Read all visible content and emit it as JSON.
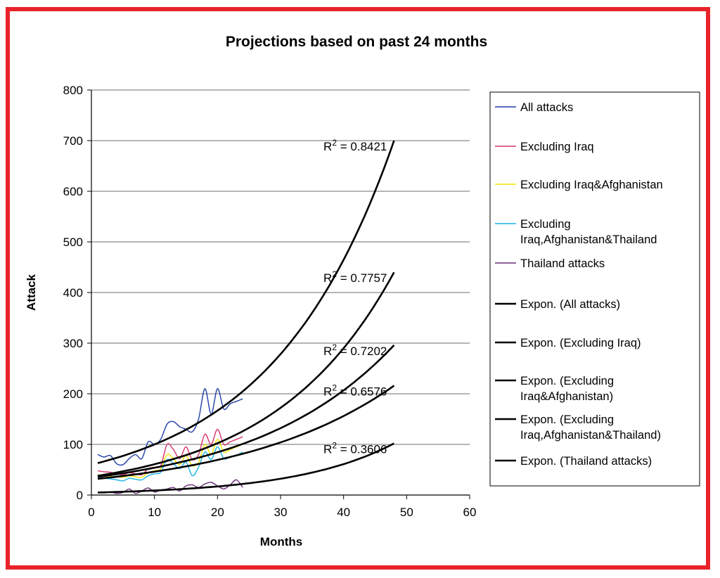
{
  "chart_data": {
    "type": "line",
    "title": "Projections based on past 24 months",
    "xlabel": "Months",
    "ylabel": "Attack",
    "xlim": [
      0,
      60
    ],
    "ylim": [
      0,
      800
    ],
    "xticks": [
      0,
      10,
      20,
      30,
      40,
      50,
      60
    ],
    "yticks": [
      0,
      100,
      200,
      300,
      400,
      500,
      600,
      700,
      800
    ],
    "grid": "horizontal",
    "legend_position": "right",
    "series": [
      {
        "name": "All attacks",
        "color": "#1f3fa8",
        "kind": "data",
        "x": [
          1,
          2,
          3,
          4,
          5,
          6,
          7,
          8,
          9,
          10,
          11,
          12,
          13,
          14,
          15,
          16,
          17,
          18,
          19,
          20,
          21,
          22,
          23,
          24
        ],
        "y": [
          80,
          75,
          78,
          62,
          60,
          72,
          80,
          72,
          105,
          100,
          110,
          140,
          145,
          135,
          130,
          125,
          150,
          210,
          160,
          210,
          170,
          180,
          185,
          190
        ]
      },
      {
        "name": "Excluding Iraq",
        "color": "#d6336c",
        "kind": "data",
        "x": [
          1,
          2,
          3,
          4,
          5,
          6,
          7,
          8,
          9,
          10,
          11,
          12,
          13,
          14,
          15,
          16,
          17,
          18,
          19,
          20,
          21,
          22,
          23,
          24
        ],
        "y": [
          48,
          46,
          45,
          42,
          40,
          44,
          42,
          40,
          52,
          55,
          58,
          100,
          90,
          72,
          95,
          70,
          80,
          120,
          100,
          130,
          100,
          105,
          110,
          115
        ]
      },
      {
        "name": "Excluding Iraq&Afghanistan",
        "color": "#f2e200",
        "kind": "data",
        "x": [
          1,
          2,
          3,
          4,
          5,
          6,
          7,
          8,
          9,
          10,
          11,
          12,
          13,
          14,
          15,
          16,
          17,
          18,
          19,
          20,
          21,
          22,
          23,
          24
        ],
        "y": [
          40,
          38,
          37,
          36,
          35,
          38,
          36,
          35,
          44,
          48,
          52,
          80,
          72,
          60,
          78,
          58,
          65,
          100,
          80,
          110,
          85,
          90,
          95,
          100
        ]
      },
      {
        "name": "Excluding Iraq,Afghanistan&Thailand",
        "color": "#19b4e6",
        "kind": "data",
        "x": [
          1,
          2,
          3,
          4,
          5,
          6,
          7,
          8,
          9,
          10,
          11,
          12,
          13,
          14,
          15,
          16,
          17,
          18,
          19,
          20,
          21,
          22,
          23,
          24
        ],
        "y": [
          35,
          33,
          32,
          30,
          28,
          33,
          31,
          30,
          38,
          42,
          45,
          70,
          62,
          52,
          65,
          38,
          55,
          85,
          70,
          95,
          72,
          75,
          78,
          85
        ]
      },
      {
        "name": "Thailand attacks",
        "color": "#6b2f7a",
        "kind": "data",
        "x": [
          1,
          2,
          3,
          4,
          5,
          6,
          7,
          8,
          9,
          10,
          11,
          12,
          13,
          14,
          15,
          16,
          17,
          18,
          19,
          20,
          21,
          22,
          23,
          24
        ],
        "y": [
          5,
          4,
          6,
          3,
          5,
          12,
          3,
          8,
          14,
          6,
          10,
          12,
          15,
          8,
          18,
          20,
          15,
          22,
          25,
          18,
          12,
          20,
          30,
          15
        ]
      },
      {
        "name": "Expon. (All attacks)",
        "color": "#000000",
        "kind": "trend",
        "r2": "R² = 0.8421",
        "x": [
          1,
          10,
          20,
          30,
          40,
          48
        ],
        "y": [
          63,
          104,
          178,
          305,
          520,
          700
        ]
      },
      {
        "name": "Expon. (Excluding Iraq)",
        "color": "#000000",
        "kind": "trend",
        "r2": "R² = 0.7757",
        "x": [
          1,
          10,
          20,
          30,
          40,
          48
        ],
        "y": [
          38,
          62,
          108,
          188,
          326,
          440
        ]
      },
      {
        "name": "Expon. (Excluding Iraq&Afghanistan)",
        "color": "#000000",
        "kind": "trend",
        "r2": "R² = 0.7202",
        "x": [
          1,
          10,
          20,
          30,
          40,
          48
        ],
        "y": [
          36,
          56,
          90,
          143,
          227,
          296
        ]
      },
      {
        "name": "Expon. (Excluding Iraq,Afghanistan&Thailand)",
        "color": "#000000",
        "kind": "trend",
        "r2": "R² = 0.6576",
        "x": [
          1,
          10,
          20,
          30,
          40,
          48
        ],
        "y": [
          32,
          46,
          70,
          108,
          165,
          216
        ]
      },
      {
        "name": "Expon. (Thailand attacks)",
        "color": "#000000",
        "kind": "trend",
        "r2": "R² = 0.3606",
        "x": [
          1,
          10,
          20,
          30,
          40,
          48
        ],
        "y": [
          5,
          10,
          19,
          35,
          66,
          102
        ]
      }
    ],
    "legend": [
      {
        "lines": [
          "All attacks"
        ],
        "color": "#1f3fa8"
      },
      {
        "lines": [
          "Excluding Iraq"
        ],
        "color": "#d6336c"
      },
      {
        "lines": [
          "Excluding Iraq&Afghanistan"
        ],
        "color": "#f2e200"
      },
      {
        "lines": [
          "Excluding",
          "Iraq,Afghanistan&Thailand"
        ],
        "color": "#19b4e6"
      },
      {
        "lines": [
          "Thailand attacks"
        ],
        "color": "#6b2f7a"
      },
      {
        "lines": [
          "Expon. (All attacks)"
        ],
        "color": "#000000"
      },
      {
        "lines": [
          "Expon. (Excluding Iraq)"
        ],
        "color": "#000000"
      },
      {
        "lines": [
          "Expon. (Excluding",
          "Iraq&Afghanistan)"
        ],
        "color": "#000000"
      },
      {
        "lines": [
          "Expon. (Excluding",
          "Iraq,Afghanistan&Thailand)"
        ],
        "color": "#000000"
      },
      {
        "lines": [
          "Expon. (Thailand attacks)"
        ],
        "color": "#000000"
      }
    ]
  },
  "colors": {
    "frame": "#e8232a",
    "grid": "#6e6e6e"
  }
}
